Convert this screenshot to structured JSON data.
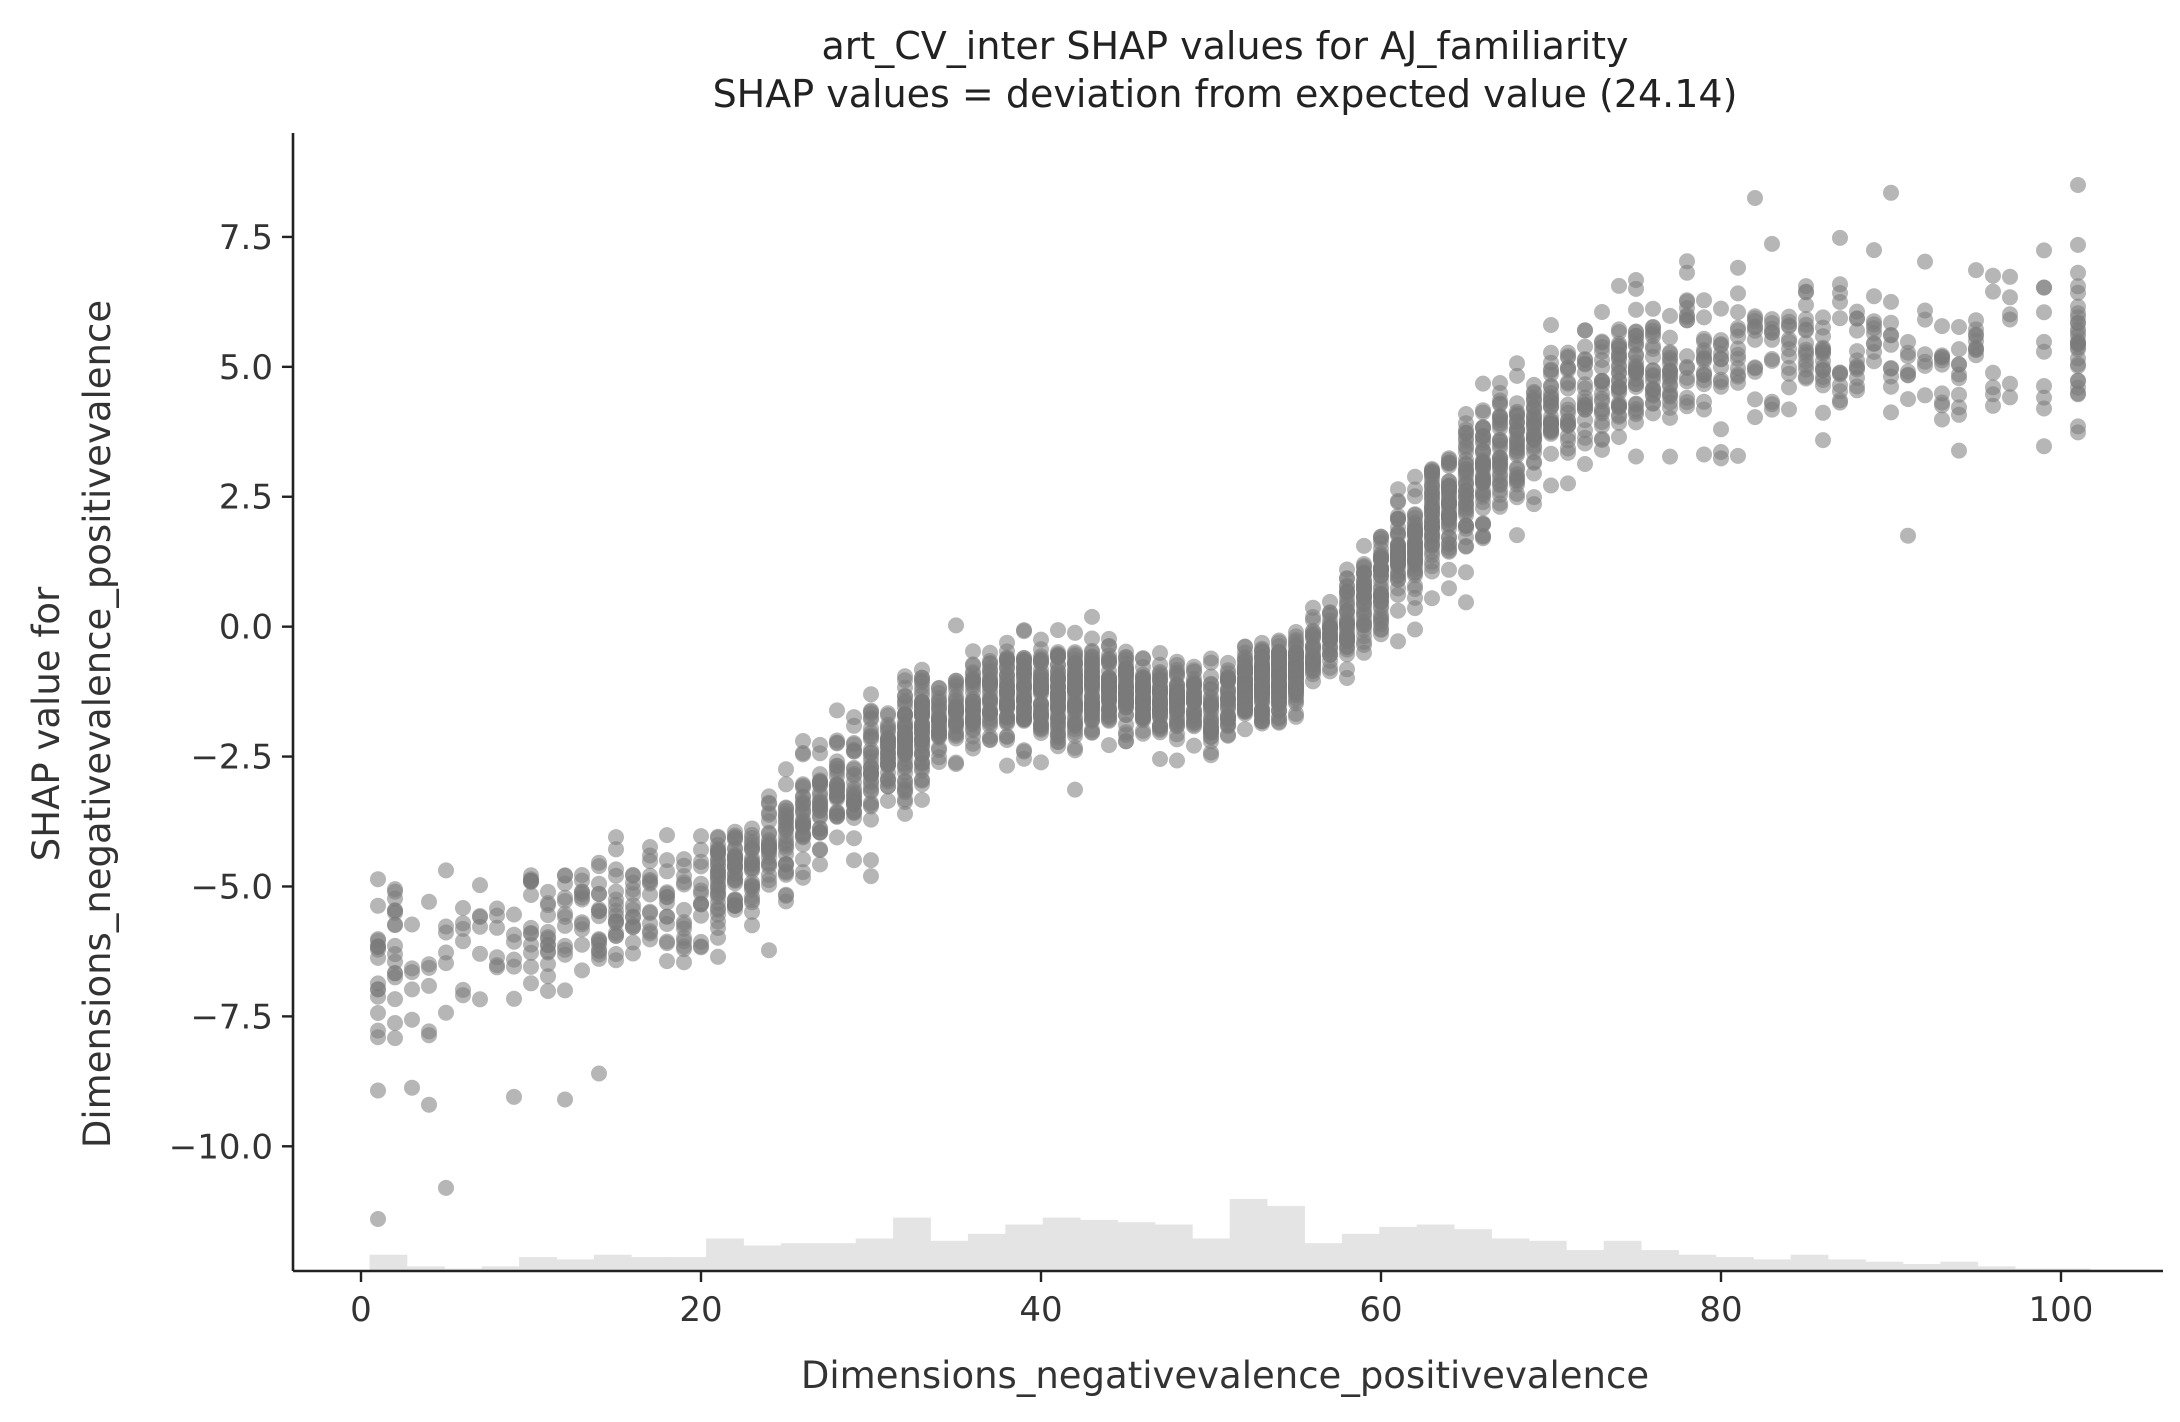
{
  "chart_data": {
    "type": "scatter",
    "title": "art_CV_inter SHAP values for AJ_familiarity",
    "subtitle": "SHAP values = deviation from expected value (24.14)",
    "xlabel": "Dimensions_negativevalence_positivevalence",
    "ylabel_line1": "SHAP value for",
    "ylabel_line2": "Dimensions_negativevalence_positivevalence",
    "xlim": [
      -4,
      106
    ],
    "ylim": [
      -12.4,
      9.5
    ],
    "x_ticks": [
      0,
      20,
      40,
      60,
      80,
      100
    ],
    "x_tick_labels": [
      "0",
      "20",
      "40",
      "60",
      "80",
      "100"
    ],
    "y_ticks": [
      7.5,
      5.0,
      2.5,
      0.0,
      -2.5,
      -5.0,
      -7.5,
      -10.0
    ],
    "y_tick_labels": [
      "7.5",
      "5.0",
      "2.5",
      "0.0",
      "−2.5",
      "−5.0",
      "−7.5",
      "−10.0"
    ],
    "grid": false,
    "legend": "none",
    "point_color": "#7a7a7a",
    "histogram_color": "#e4e4e4",
    "trend": {
      "x": [
        1,
        5,
        10,
        15,
        20,
        25,
        30,
        35,
        40,
        45,
        50,
        55,
        60,
        65,
        70,
        75,
        80,
        85,
        90,
        95,
        101
      ],
      "mean": [
        -6.5,
        -6.2,
        -5.8,
        -5.6,
        -5.2,
        -4.0,
        -2.6,
        -1.6,
        -1.2,
        -1.3,
        -1.5,
        -0.9,
        0.9,
        2.8,
        4.1,
        4.9,
        5.2,
        5.2,
        5.2,
        5.2,
        5.4
      ],
      "spread": [
        1.9,
        1.2,
        1.0,
        1.0,
        1.0,
        0.9,
        0.9,
        0.8,
        0.8,
        0.7,
        0.6,
        0.6,
        0.8,
        1.0,
        1.0,
        1.1,
        1.2,
        1.2,
        1.3,
        1.3,
        1.2
      ]
    },
    "outliers": [
      {
        "x": 1,
        "y": -11.4
      },
      {
        "x": 5,
        "y": -10.8
      },
      {
        "x": 4,
        "y": -9.2
      },
      {
        "x": 12,
        "y": -9.1
      },
      {
        "x": 9,
        "y": -9.05
      },
      {
        "x": 91,
        "y": 1.75
      },
      {
        "x": 82,
        "y": 8.25
      },
      {
        "x": 90,
        "y": 8.35
      },
      {
        "x": 101,
        "y": 8.5
      },
      {
        "x": 30,
        "y": -4.8
      },
      {
        "x": 14,
        "y": -8.6
      }
    ],
    "histogram": {
      "bin_start": 0.5,
      "bin_width": 2.2,
      "counts": [
        7,
        2,
        1,
        2,
        6,
        5,
        7,
        6,
        6,
        14,
        11,
        12,
        12,
        14,
        23,
        13,
        16,
        20,
        23,
        22,
        21,
        20,
        14,
        31,
        28,
        12,
        16,
        19,
        20,
        18,
        14,
        13,
        9,
        13,
        9,
        7,
        6,
        5,
        7,
        5,
        4,
        3,
        4,
        2,
        1,
        1
      ]
    }
  }
}
